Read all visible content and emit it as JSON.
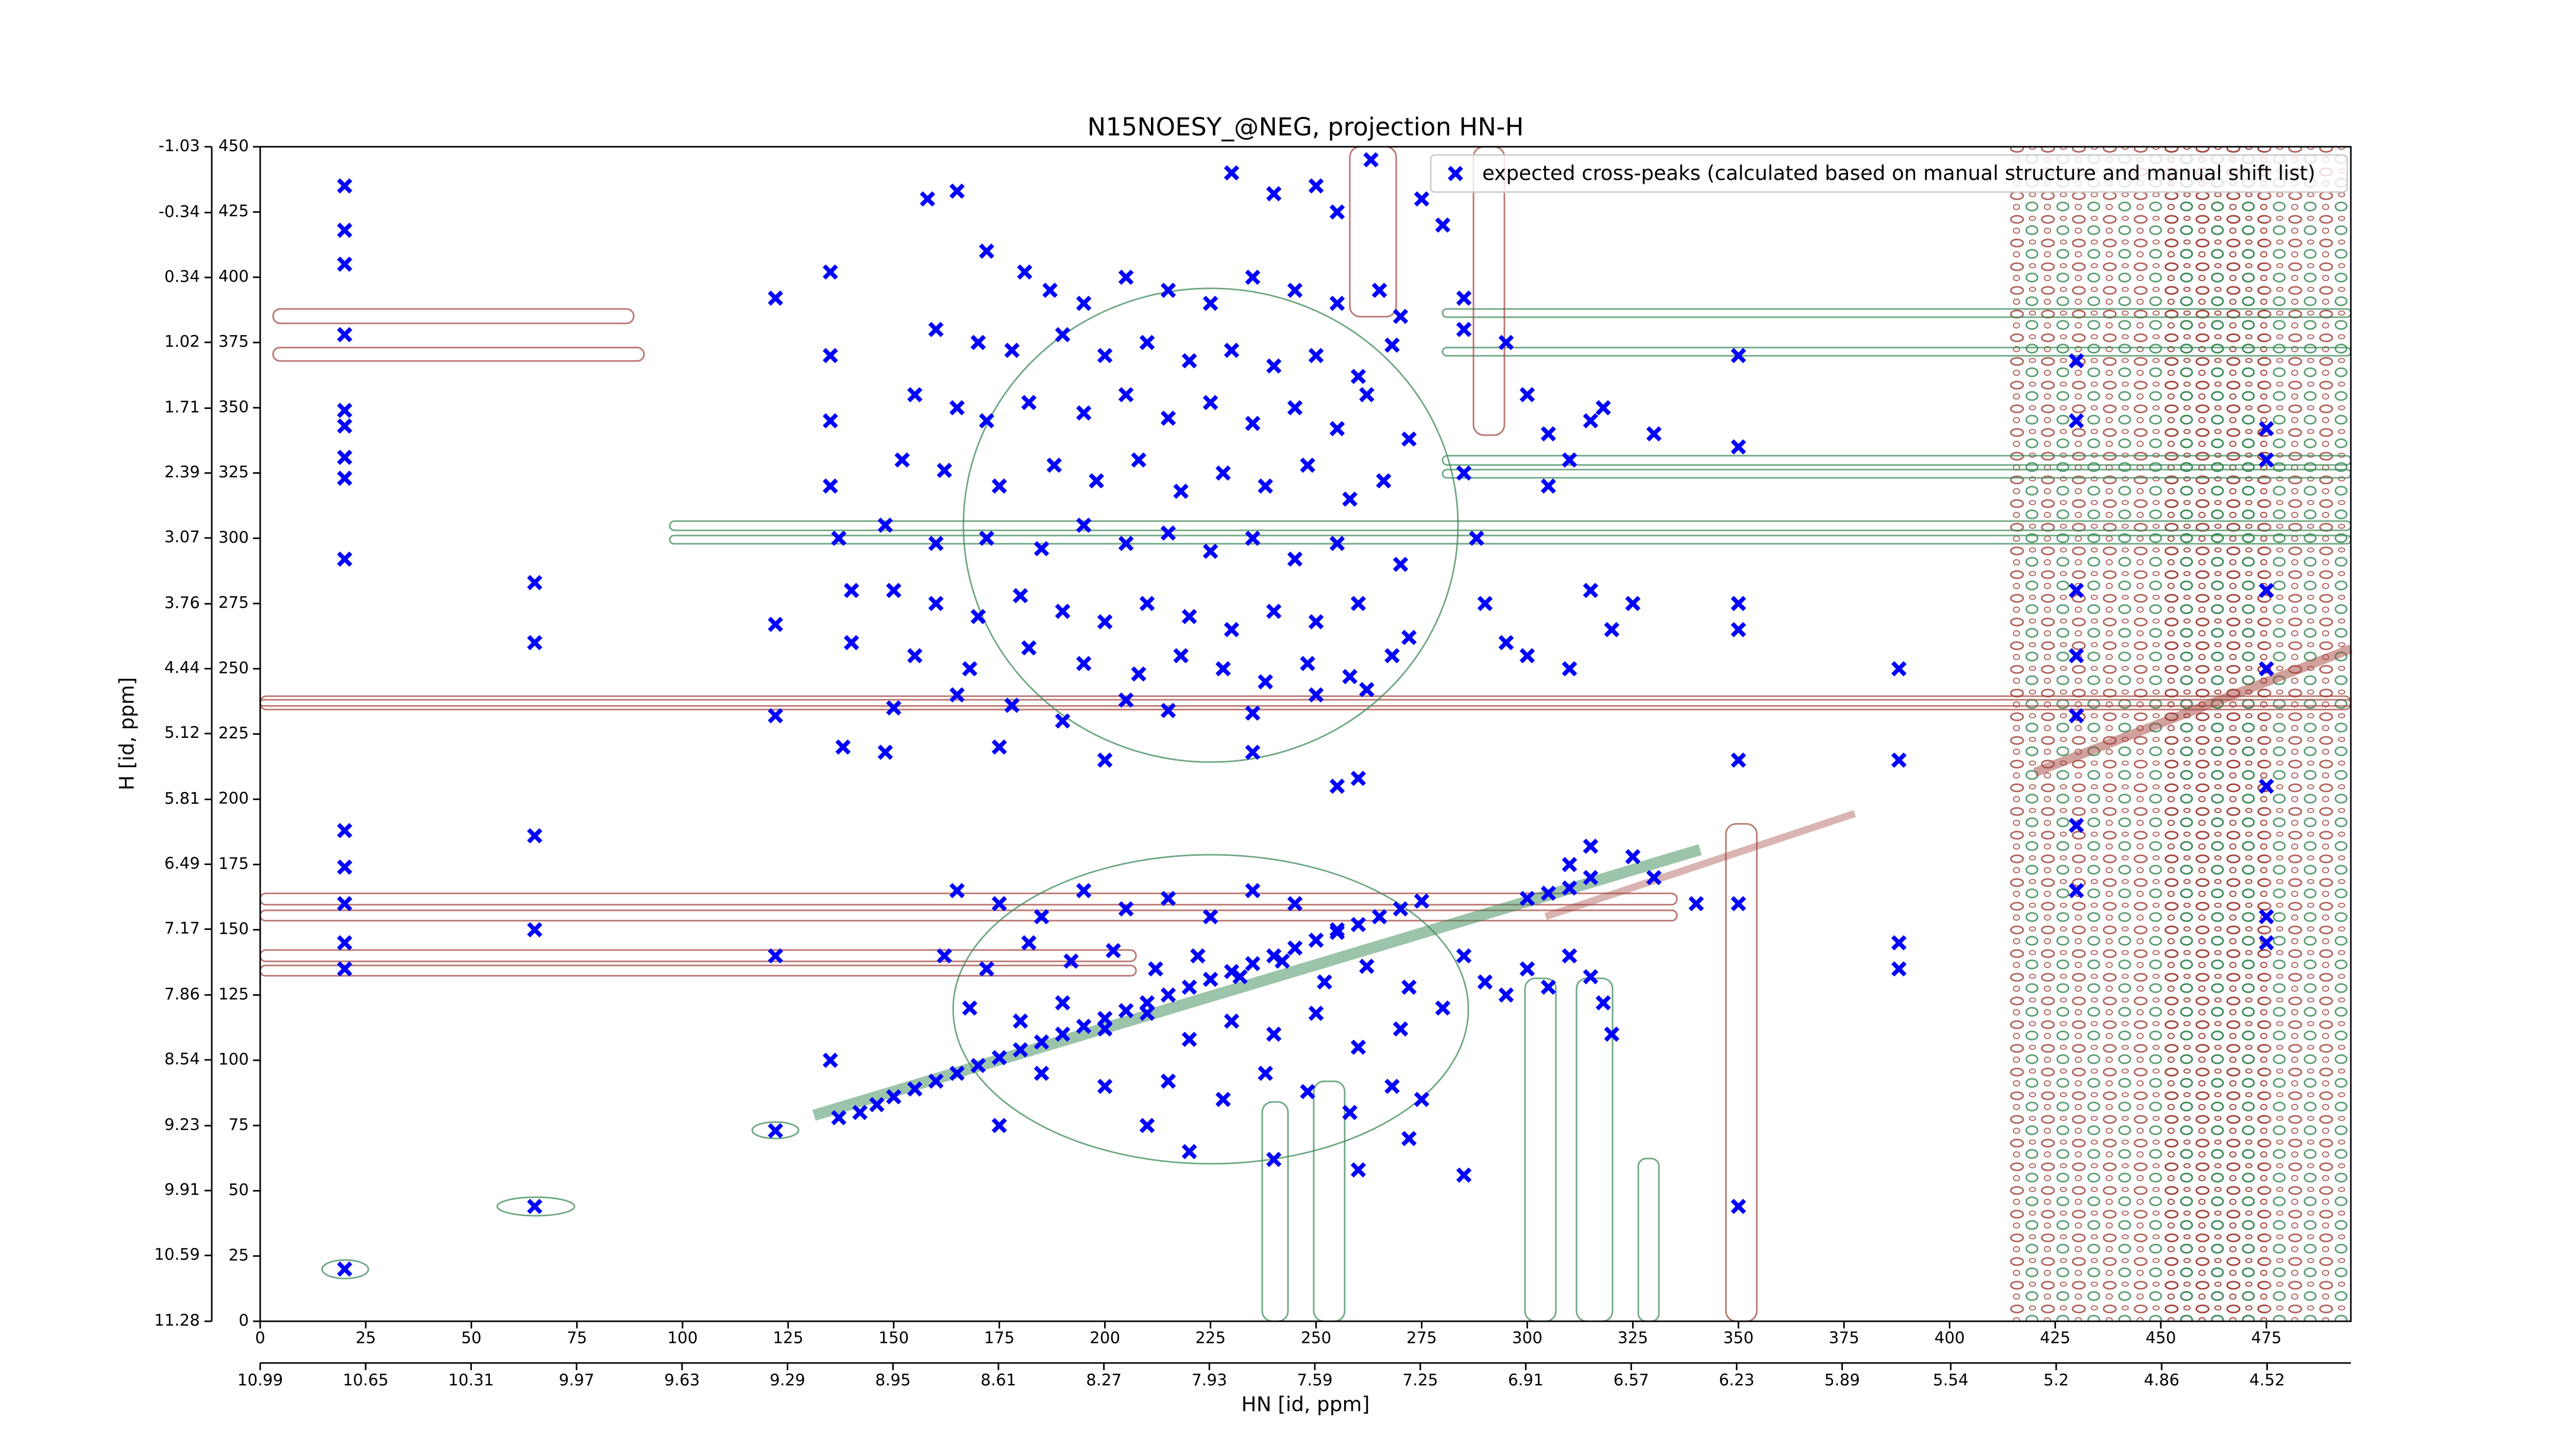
{
  "chart_data": {
    "type": "scatter",
    "title": "N15NOESY_@NEG, projection HN-H",
    "xlabel": "HN [id, ppm]",
    "ylabel": "H [id, ppm]",
    "xlim": [
      0,
      495
    ],
    "ylim": [
      0,
      450
    ],
    "xticks": [
      0,
      25,
      50,
      75,
      100,
      125,
      150,
      175,
      200,
      225,
      250,
      275,
      300,
      325,
      350,
      375,
      400,
      425,
      450,
      475
    ],
    "yticks": [
      0,
      25,
      50,
      75,
      100,
      125,
      150,
      175,
      200,
      225,
      250,
      275,
      300,
      325,
      350,
      375,
      400,
      425,
      450
    ],
    "x2lim": [
      10.99,
      4.25
    ],
    "x2ticks": [
      10.99,
      10.65,
      10.31,
      9.97,
      9.63,
      9.29,
      8.95,
      8.61,
      8.27,
      7.93,
      7.59,
      7.25,
      6.91,
      6.57,
      6.23,
      5.89,
      5.54,
      5.2,
      4.86,
      4.52
    ],
    "y2lim": [
      11.28,
      -1.03
    ],
    "y2ticks": [
      11.28,
      10.59,
      9.91,
      9.23,
      8.54,
      7.86,
      7.17,
      6.49,
      5.81,
      5.12,
      4.44,
      3.76,
      3.07,
      2.39,
      1.71,
      1.02,
      0.34,
      -0.34,
      -1.03
    ],
    "grid": false,
    "legend_loc": "upper right",
    "series": [
      {
        "name": "expected cross-peaks (calculated based on manual structure and manual shift list)",
        "color": "#0000ff",
        "x": [
          20,
          20,
          20,
          20,
          20,
          20,
          20,
          20,
          20,
          20,
          20,
          20,
          20,
          20,
          20,
          65,
          65,
          65,
          65,
          65,
          122,
          122,
          122,
          122,
          122,
          135,
          135,
          135,
          135,
          137,
          140,
          140,
          138,
          135,
          137,
          142,
          146,
          150,
          155,
          160,
          165,
          170,
          175,
          180,
          185,
          190,
          195,
          200,
          205,
          210,
          215,
          220,
          225,
          230,
          235,
          240,
          245,
          250,
          255,
          260,
          265,
          270,
          275,
          300,
          305,
          310,
          315,
          158,
          165,
          172,
          181,
          187,
          195,
          205,
          215,
          225,
          235,
          245,
          255,
          265,
          270,
          160,
          170,
          178,
          190,
          200,
          210,
          220,
          230,
          240,
          250,
          260,
          268,
          155,
          165,
          172,
          182,
          195,
          205,
          215,
          225,
          235,
          245,
          255,
          262,
          272,
          152,
          162,
          175,
          188,
          198,
          208,
          218,
          228,
          238,
          248,
          258,
          266,
          148,
          160,
          172,
          185,
          195,
          205,
          215,
          225,
          235,
          245,
          255,
          270,
          150,
          160,
          170,
          180,
          190,
          200,
          210,
          220,
          230,
          240,
          250,
          260,
          272,
          155,
          168,
          182,
          195,
          208,
          218,
          228,
          238,
          248,
          258,
          268,
          150,
          165,
          178,
          190,
          205,
          215,
          235,
          250,
          262,
          148,
          175,
          200,
          235,
          255,
          260,
          165,
          175,
          185,
          195,
          205,
          215,
          225,
          235,
          245,
          255,
          162,
          172,
          182,
          192,
          202,
          212,
          222,
          232,
          242,
          252,
          262,
          272,
          168,
          180,
          190,
          200,
          210,
          220,
          230,
          240,
          250,
          260,
          270,
          280,
          185,
          200,
          215,
          228,
          238,
          248,
          258,
          268,
          275,
          175,
          210,
          220,
          240,
          260,
          272,
          285,
          285,
          290,
          295,
          300,
          305,
          310,
          315,
          318,
          320,
          285,
          285,
          295,
          300,
          305,
          310,
          315,
          318,
          305,
          285,
          288,
          290,
          295,
          300,
          310,
          315,
          320,
          325,
          330,
          310,
          315,
          325,
          330,
          340,
          350,
          350,
          350,
          350,
          350,
          350,
          350,
          388,
          388,
          388,
          388,
          430,
          430,
          430,
          430,
          430,
          430,
          430,
          475,
          475,
          475,
          475,
          475,
          475,
          475,
          230,
          240,
          250,
          255,
          263,
          280,
          275
        ],
        "values": [
          435,
          418,
          405,
          378,
          349,
          343,
          331,
          323,
          292,
          188,
          174,
          160,
          145,
          135,
          20,
          283,
          260,
          186,
          150,
          44,
          392,
          267,
          232,
          140,
          73,
          402,
          370,
          345,
          320,
          300,
          280,
          260,
          220,
          100,
          78,
          80,
          83,
          86,
          89,
          92,
          95,
          98,
          101,
          104,
          107,
          110,
          113,
          116,
          119,
          122,
          125,
          128,
          131,
          134,
          137,
          140,
          143,
          146,
          149,
          152,
          155,
          158,
          161,
          162,
          164,
          166,
          170,
          430,
          433,
          410,
          402,
          395,
          390,
          400,
          395,
          390,
          400,
          395,
          390,
          395,
          385,
          380,
          375,
          372,
          378,
          370,
          375,
          368,
          372,
          366,
          370,
          362,
          374,
          355,
          350,
          345,
          352,
          348,
          355,
          346,
          352,
          344,
          350,
          342,
          355,
          338,
          330,
          326,
          320,
          328,
          322,
          330,
          318,
          325,
          320,
          328,
          315,
          322,
          305,
          298,
          300,
          296,
          305,
          298,
          302,
          295,
          300,
          292,
          298,
          290,
          280,
          275,
          270,
          278,
          272,
          268,
          275,
          270,
          265,
          272,
          268,
          275,
          262,
          255,
          250,
          258,
          252,
          248,
          255,
          250,
          245,
          252,
          247,
          255,
          235,
          240,
          236,
          230,
          238,
          234,
          233,
          240,
          242,
          218,
          220,
          215,
          218,
          205,
          208,
          165,
          160,
          155,
          165,
          158,
          162,
          155,
          165,
          160,
          150,
          140,
          135,
          145,
          138,
          142,
          135,
          140,
          132,
          138,
          130,
          136,
          128,
          120,
          115,
          122,
          112,
          118,
          108,
          115,
          110,
          118,
          105,
          112,
          120,
          95,
          90,
          92,
          85,
          95,
          88,
          80,
          90,
          85,
          75,
          75,
          65,
          62,
          58,
          70,
          56,
          140,
          130,
          125,
          135,
          128,
          140,
          132,
          122,
          110,
          392,
          380,
          375,
          355,
          340,
          330,
          345,
          350,
          320,
          325,
          300,
          275,
          260,
          255,
          250,
          280,
          265,
          275,
          340,
          175,
          182,
          178,
          170,
          160,
          370,
          335,
          275,
          265,
          160,
          44,
          215,
          215,
          250,
          145,
          135,
          368,
          345,
          280,
          232,
          255,
          190,
          165,
          342,
          330,
          280,
          205,
          155,
          145,
          250,
          440,
          432,
          435,
          425,
          445,
          420,
          430
        ]
      }
    ]
  }
}
